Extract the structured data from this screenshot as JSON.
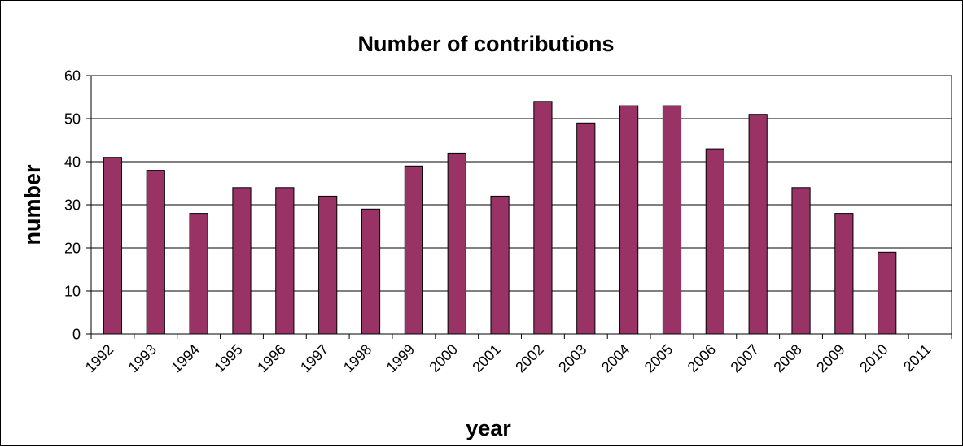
{
  "chart_data": {
    "type": "bar",
    "title": "Number of contributions",
    "xlabel": "year",
    "ylabel": "number",
    "categories": [
      "1992",
      "1993",
      "1994",
      "1995",
      "1996",
      "1997",
      "1998",
      "1999",
      "2000",
      "2001",
      "2002",
      "2003",
      "2004",
      "2005",
      "2006",
      "2007",
      "2008",
      "2009",
      "2010",
      "2011"
    ],
    "values": [
      41,
      38,
      28,
      34,
      34,
      32,
      29,
      39,
      42,
      32,
      54,
      49,
      53,
      53,
      43,
      51,
      34,
      28,
      19,
      null
    ],
    "ylim": [
      0,
      60
    ],
    "yticks": [
      "0",
      "10",
      "20",
      "30",
      "40",
      "50",
      "60"
    ],
    "grid": true,
    "legend": "none",
    "bar_color": "#993366",
    "bar_edge_color": "#000000"
  }
}
